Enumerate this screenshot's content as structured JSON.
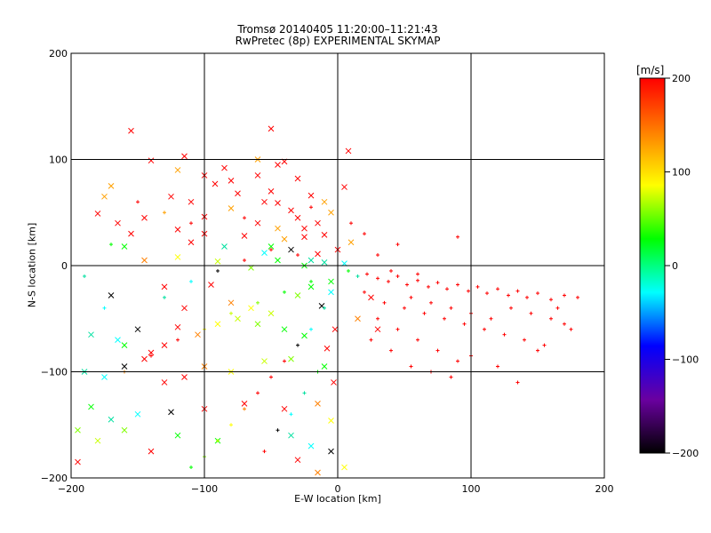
{
  "chart_data": {
    "type": "scatter",
    "title": "Tromsø 20140405 11:20:00–11:21:43",
    "subtitle": "RwPretec (8p) EXPERIMENTAL SKYMAP",
    "xlabel": "E-W location [km]",
    "ylabel": "N-S location [km]",
    "xlim": [
      -200,
      200
    ],
    "ylim": [
      -200,
      200
    ],
    "xticks": [
      "−200",
      "−100",
      "0",
      "100",
      "200"
    ],
    "yticks": [
      "−200",
      "−100",
      "0",
      "100",
      "200"
    ],
    "grid": true,
    "colorbar": {
      "label": "[m/s]",
      "range": [
        -200,
        200
      ],
      "ticks": [
        "200",
        "100",
        "0",
        "−100",
        "−200"
      ],
      "colors": [
        "#000000",
        "#6a00a0",
        "#0000ff",
        "#00ffff",
        "#00ff00",
        "#ffff00",
        "#ff7f00",
        "#ff0000"
      ]
    },
    "marker_types": [
      "x",
      "+"
    ],
    "series": [
      {
        "marker": "x",
        "points": [
          [
            -155,
            127
          ],
          [
            -50,
            129
          ],
          [
            8,
            108
          ],
          [
            -115,
            103
          ],
          [
            -60,
            100
          ],
          [
            -45,
            95
          ],
          [
            -40,
            98
          ],
          [
            -140,
            99
          ],
          [
            -85,
            92
          ],
          [
            -120,
            90
          ],
          [
            -100,
            85
          ],
          [
            -80,
            80
          ],
          [
            -60,
            85
          ],
          [
            -30,
            82
          ],
          [
            -170,
            75
          ],
          [
            -92,
            77
          ],
          [
            -50,
            70
          ],
          [
            -20,
            66
          ],
          [
            5,
            74
          ],
          [
            -175,
            65
          ],
          [
            -125,
            65
          ],
          [
            -110,
            60
          ],
          [
            -75,
            68
          ],
          [
            -45,
            59
          ],
          [
            -10,
            60
          ],
          [
            -180,
            49
          ],
          [
            -165,
            40
          ],
          [
            -145,
            45
          ],
          [
            -100,
            46
          ],
          [
            -80,
            54
          ],
          [
            -60,
            40
          ],
          [
            -30,
            45
          ],
          [
            -15,
            40
          ],
          [
            -35,
            52
          ],
          [
            -5,
            50
          ],
          [
            -155,
            30
          ],
          [
            -120,
            34
          ],
          [
            -100,
            30
          ],
          [
            -70,
            28
          ],
          [
            -45,
            35
          ],
          [
            -25,
            27
          ],
          [
            -10,
            29
          ],
          [
            -160,
            18
          ],
          [
            -110,
            22
          ],
          [
            -85,
            18
          ],
          [
            -55,
            12
          ],
          [
            -35,
            15
          ],
          [
            -15,
            11
          ],
          [
            0,
            15
          ],
          [
            10,
            22
          ],
          [
            -145,
            5
          ],
          [
            -120,
            8
          ],
          [
            -90,
            4
          ],
          [
            -65,
            -2
          ],
          [
            -45,
            5
          ],
          [
            -25,
            0
          ],
          [
            -10,
            3
          ],
          [
            5,
            2
          ],
          [
            -170,
            -28
          ],
          [
            -130,
            -20
          ],
          [
            -115,
            -40
          ],
          [
            -95,
            -18
          ],
          [
            -80,
            -35
          ],
          [
            -65,
            -40
          ],
          [
            -50,
            -45
          ],
          [
            -30,
            -28
          ],
          [
            -20,
            -20
          ],
          [
            -5,
            -15
          ],
          [
            -185,
            -65
          ],
          [
            -165,
            -70
          ],
          [
            -150,
            -60
          ],
          [
            -140,
            -82
          ],
          [
            -130,
            -75
          ],
          [
            -120,
            -58
          ],
          [
            -105,
            -65
          ],
          [
            -90,
            -55
          ],
          [
            -75,
            -50
          ],
          [
            -60,
            -55
          ],
          [
            -40,
            -60
          ],
          [
            -25,
            -66
          ],
          [
            -190,
            -100
          ],
          [
            -175,
            -105
          ],
          [
            -160,
            -95
          ],
          [
            -145,
            -88
          ],
          [
            -130,
            -110
          ],
          [
            -115,
            -105
          ],
          [
            -100,
            -95
          ],
          [
            -80,
            -100
          ],
          [
            -55,
            -90
          ],
          [
            -35,
            -88
          ],
          [
            -10,
            -95
          ],
          [
            -185,
            -133
          ],
          [
            -170,
            -145
          ],
          [
            -150,
            -140
          ],
          [
            -125,
            -138
          ],
          [
            -100,
            -135
          ],
          [
            -70,
            -130
          ],
          [
            -40,
            -135
          ],
          [
            -15,
            -130
          ],
          [
            -5,
            -146
          ],
          [
            -180,
            -165
          ],
          [
            -160,
            -155
          ],
          [
            -120,
            -160
          ],
          [
            -90,
            -165
          ],
          [
            -35,
            -160
          ],
          [
            -20,
            -170
          ],
          [
            -5,
            -175
          ],
          [
            -195,
            -185
          ],
          [
            -140,
            -175
          ],
          [
            -30,
            -183
          ],
          [
            -15,
            -195
          ],
          [
            5,
            -190
          ],
          [
            -55,
            60
          ],
          [
            -25,
            35
          ],
          [
            -40,
            25
          ],
          [
            -50,
            18
          ],
          [
            -20,
            5
          ],
          [
            -5,
            -25
          ],
          [
            -12,
            -38
          ],
          [
            -2,
            -60
          ],
          [
            -8,
            -78
          ],
          [
            -3,
            -110
          ],
          [
            15,
            -50
          ],
          [
            25,
            -30
          ],
          [
            30,
            -60
          ],
          [
            -195,
            -155
          ],
          [
            -160,
            -75
          ]
        ]
      },
      {
        "marker": "+",
        "points": [
          [
            8,
            -5
          ],
          [
            15,
            -10
          ],
          [
            22,
            -8
          ],
          [
            30,
            -12
          ],
          [
            38,
            -15
          ],
          [
            45,
            -10
          ],
          [
            52,
            -18
          ],
          [
            60,
            -14
          ],
          [
            68,
            -20
          ],
          [
            75,
            -16
          ],
          [
            82,
            -22
          ],
          [
            90,
            -18
          ],
          [
            98,
            -24
          ],
          [
            105,
            -20
          ],
          [
            112,
            -26
          ],
          [
            120,
            -22
          ],
          [
            128,
            -28
          ],
          [
            135,
            -24
          ],
          [
            142,
            -30
          ],
          [
            150,
            -26
          ],
          [
            160,
            -32
          ],
          [
            170,
            -28
          ],
          [
            180,
            -30
          ],
          [
            20,
            -25
          ],
          [
            35,
            -35
          ],
          [
            50,
            -40
          ],
          [
            65,
            -45
          ],
          [
            80,
            -50
          ],
          [
            95,
            -55
          ],
          [
            110,
            -60
          ],
          [
            125,
            -65
          ],
          [
            140,
            -70
          ],
          [
            155,
            -75
          ],
          [
            170,
            -55
          ],
          [
            30,
            -50
          ],
          [
            45,
            -60
          ],
          [
            60,
            -70
          ],
          [
            75,
            -80
          ],
          [
            90,
            -90
          ],
          [
            100,
            -85
          ],
          [
            120,
            -95
          ],
          [
            135,
            -110
          ],
          [
            150,
            -80
          ],
          [
            165,
            -40
          ],
          [
            55,
            -30
          ],
          [
            70,
            -35
          ],
          [
            85,
            -40
          ],
          [
            100,
            -45
          ],
          [
            115,
            -50
          ],
          [
            130,
            -40
          ],
          [
            145,
            -45
          ],
          [
            160,
            -50
          ],
          [
            175,
            -60
          ],
          [
            25,
            -70
          ],
          [
            40,
            -80
          ],
          [
            55,
            -95
          ],
          [
            70,
            -100
          ],
          [
            85,
            -105
          ],
          [
            40,
            -5
          ],
          [
            60,
            -8
          ],
          [
            90,
            27
          ],
          [
            -10,
            -40
          ],
          [
            -20,
            -60
          ],
          [
            -30,
            -75
          ],
          [
            -40,
            -90
          ],
          [
            -50,
            -105
          ],
          [
            -60,
            -120
          ],
          [
            -70,
            -135
          ],
          [
            -80,
            -150
          ],
          [
            -90,
            -165
          ],
          [
            -100,
            -180
          ],
          [
            -110,
            -190
          ],
          [
            -15,
            -100
          ],
          [
            -25,
            -120
          ],
          [
            -35,
            -140
          ],
          [
            -45,
            -155
          ],
          [
            -55,
            -175
          ],
          [
            -120,
            -70
          ],
          [
            -140,
            -85
          ],
          [
            -160,
            -100
          ],
          [
            -100,
            -60
          ],
          [
            -80,
            -45
          ],
          [
            -60,
            -35
          ],
          [
            -40,
            -25
          ],
          [
            -20,
            -15
          ],
          [
            -130,
            -30
          ],
          [
            -110,
            -15
          ],
          [
            -90,
            -5
          ],
          [
            -70,
            5
          ],
          [
            -50,
            15
          ],
          [
            -30,
            10
          ],
          [
            -150,
            60
          ],
          [
            -130,
            50
          ],
          [
            -110,
            40
          ],
          [
            -70,
            45
          ],
          [
            -20,
            55
          ],
          [
            -170,
            20
          ],
          [
            -190,
            -10
          ],
          [
            -175,
            -40
          ],
          [
            10,
            40
          ],
          [
            20,
            30
          ],
          [
            30,
            10
          ],
          [
            45,
            20
          ]
        ]
      }
    ]
  }
}
